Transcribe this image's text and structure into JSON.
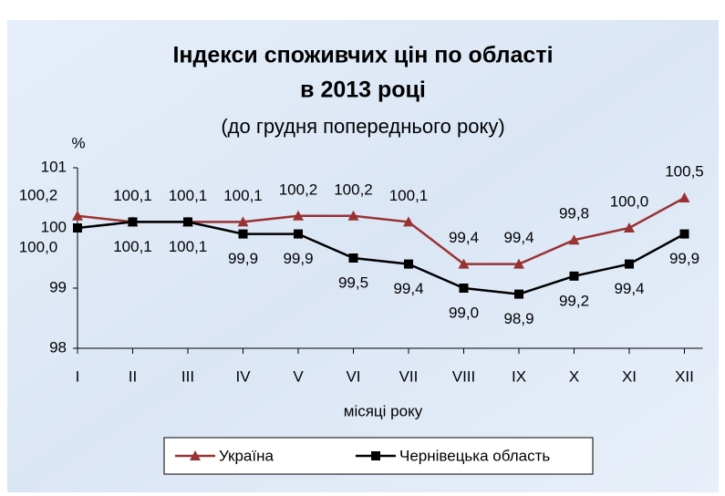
{
  "chart_data": {
    "type": "line",
    "title": [
      "Індекси споживчих цін по області",
      "в 2013 році"
    ],
    "subtitle": "(до грудня попереднього року)",
    "y_label": "%",
    "x_label": "місяці року",
    "categories": [
      "I",
      "II",
      "III",
      "IV",
      "V",
      "VI",
      "VII",
      "VIII",
      "IX",
      "X",
      "XI",
      "XII"
    ],
    "series": [
      {
        "name": "Україна",
        "color": "#993333",
        "marker": "triangle",
        "values": [
          100.2,
          100.1,
          100.1,
          100.1,
          100.2,
          100.2,
          100.1,
          99.4,
          99.4,
          99.8,
          100.0,
          100.5
        ],
        "value_labels": [
          "100,2",
          "100,1",
          "100,1",
          "100,1",
          "100,2",
          "100,2",
          "100,1",
          "99,4",
          "99,4",
          "99,8",
          "100,0",
          "100,5"
        ]
      },
      {
        "name": "Чернівецька область",
        "color": "#000000",
        "marker": "square",
        "values": [
          100.0,
          100.1,
          100.1,
          99.9,
          99.9,
          99.5,
          99.4,
          99.0,
          98.9,
          99.2,
          99.4,
          99.9
        ],
        "value_labels": [
          "100,0",
          "100,1",
          "100,1",
          "99,9",
          "99,9",
          "99,5",
          "99,4",
          "99,0",
          "98,9",
          "99,2",
          "99,4",
          "99,9"
        ]
      }
    ],
    "ylim": [
      98,
      101
    ],
    "yticks": [
      98,
      99,
      100,
      101
    ],
    "grid": false,
    "legend": "bottom"
  }
}
